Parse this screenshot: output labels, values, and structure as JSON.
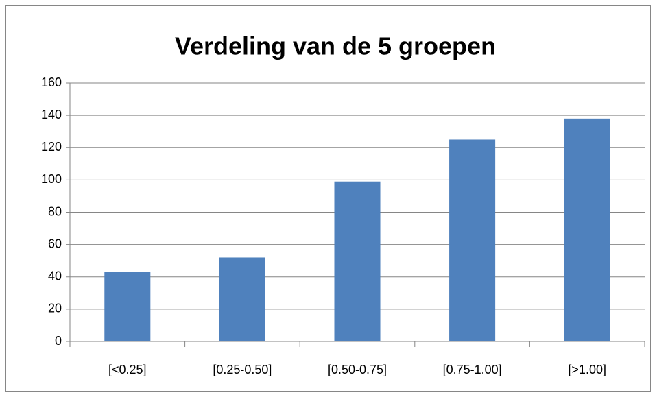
{
  "chart_data": {
    "type": "bar",
    "title": "Verdeling van de 5 groepen",
    "categories": [
      "[<0.25]",
      "[0.25-0.50]",
      "[0.50-0.75]",
      "[0.75-1.00]",
      "[>1.00]"
    ],
    "values": [
      43,
      52,
      99,
      125,
      138
    ],
    "color": "#4f81bd",
    "ylim": [
      0,
      160
    ],
    "yticks": [
      0,
      20,
      40,
      60,
      80,
      100,
      120,
      140,
      160
    ],
    "grid": true
  }
}
